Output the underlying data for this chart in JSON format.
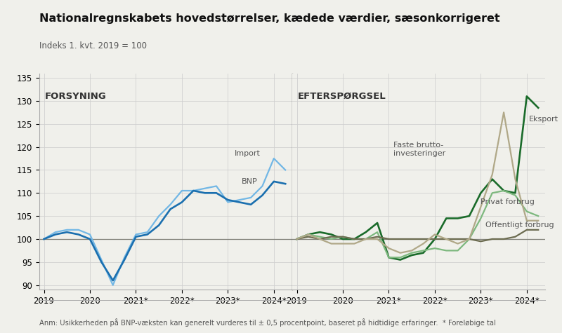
{
  "title": "Nationalregnskabets hovedstørrelser, kædede værdier, sæsonkorrigeret",
  "subtitle": "Indeks 1. kvt. 2019 = 100",
  "footnote": "Anm: Usikkerheden på BNP-væksten kan generelt vurderes til ± 0,5 procentpoint, baseret på hidtidige erfaringer.  * Foreløbige tal",
  "label_forsyning": "FORSYNING",
  "label_eftersporgsel": "EFTERSPØRGSEL",
  "ylim": [
    89,
    136
  ],
  "yticks": [
    90,
    95,
    100,
    105,
    110,
    115,
    120,
    125,
    130,
    135
  ],
  "xtick_labels": [
    "2019",
    "2020",
    "2021*",
    "2022*",
    "2023*",
    "2024*"
  ],
  "bnp_y": [
    100,
    101.0,
    101.5,
    101.0,
    100.0,
    95.0,
    91.0,
    95.5,
    100.5,
    101.0,
    103.0,
    106.5,
    108.0,
    110.5,
    110.0,
    110.0,
    108.5,
    108.0,
    107.5,
    109.5,
    112.5,
    112.0
  ],
  "import_y": [
    100,
    101.5,
    102.0,
    102.0,
    101.0,
    95.5,
    90.0,
    96.0,
    101.0,
    101.5,
    105.0,
    107.5,
    110.5,
    110.5,
    111.0,
    111.5,
    108.0,
    108.5,
    109.0,
    111.5,
    117.5,
    115.0
  ],
  "eksport_y": [
    100,
    101.0,
    101.5,
    101.0,
    100.0,
    100.0,
    101.5,
    103.5,
    96.0,
    95.5,
    96.5,
    97.0,
    100.0,
    104.5,
    104.5,
    105.0,
    110.0,
    113.0,
    110.5,
    110.0,
    131.0,
    128.5
  ],
  "privat_y": [
    100,
    101.0,
    100.5,
    100.0,
    100.5,
    100.0,
    100.0,
    101.5,
    96.0,
    96.0,
    97.0,
    97.5,
    98.0,
    97.5,
    97.5,
    100.0,
    104.5,
    110.0,
    110.5,
    109.5,
    106.0,
    105.0
  ],
  "offentligt_y": [
    100,
    100.5,
    100.0,
    100.5,
    100.5,
    100.0,
    100.0,
    100.5,
    100.0,
    100.0,
    100.0,
    100.0,
    100.0,
    100.0,
    100.0,
    100.0,
    99.5,
    100.0,
    100.0,
    100.5,
    102.0,
    102.0
  ],
  "faste_y": [
    100,
    101.0,
    100.0,
    99.0,
    99.0,
    99.0,
    100.0,
    100.0,
    98.0,
    97.0,
    97.5,
    99.0,
    101.0,
    100.0,
    99.0,
    100.0,
    107.0,
    114.0,
    127.5,
    113.0,
    104.0,
    104.0
  ],
  "color_bnp": "#1a6faf",
  "color_import": "#72b7e5",
  "color_eksport": "#1a6b2a",
  "color_privat": "#7db87e",
  "color_offentligt": "#6b6b4f",
  "color_faste": "#b0a888",
  "lw": 1.6,
  "bg_color": "#f0f0eb",
  "grid_color": "#d0d0d0",
  "hline_color": "#808078"
}
